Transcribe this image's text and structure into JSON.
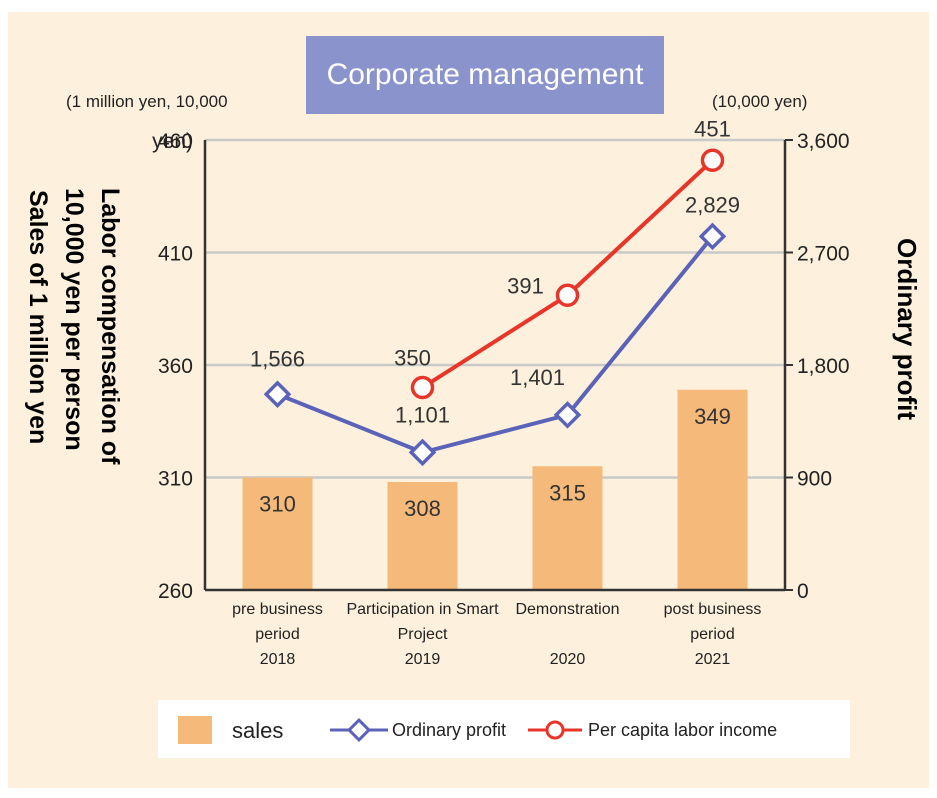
{
  "chart_data": {
    "type": "bar+line",
    "title": "Corporate management",
    "left_unit": "(1 million yen, 10,000",
    "left_unit_overlap": "yen)",
    "right_unit": "(10,000 yen)",
    "left_axis_label_lines": [
      "Labor compensation of",
      "10,000 yen per person",
      "Sales of 1 million yen"
    ],
    "right_axis_label": "Ordinary profit",
    "left_ylim": [
      260,
      460
    ],
    "right_ylim": [
      0,
      3600
    ],
    "left_ticks": [
      "260",
      "310",
      "360",
      "410",
      "460"
    ],
    "right_ticks": [
      "0",
      "900",
      "1,800",
      "2,700",
      "3,600"
    ],
    "categories": [
      [
        "pre business",
        "period",
        "2018"
      ],
      [
        "Participation in Smart",
        "Project",
        "2019"
      ],
      [
        "Demonstration",
        "",
        "2020"
      ],
      [
        "post business",
        "period",
        "2021"
      ]
    ],
    "series": [
      {
        "name": "sales",
        "kind": "bar",
        "axis": "left",
        "values": [
          310,
          308,
          315,
          349
        ],
        "labels": [
          "310",
          "308",
          "315",
          "349"
        ],
        "color": "#f5b97a"
      },
      {
        "name": "Ordinary profit",
        "kind": "line",
        "axis": "right",
        "values": [
          1566,
          1101,
          1401,
          2829
        ],
        "labels": [
          "1,566",
          "1,101",
          "1,401",
          "2,829"
        ],
        "color": "#5b63b8"
      },
      {
        "name": "Per capita labor income",
        "kind": "line",
        "axis": "left",
        "values": [
          null,
          350,
          391,
          451
        ],
        "labels": [
          "",
          "350",
          "391",
          "451"
        ],
        "color": "#e8352a"
      }
    ],
    "grid": true,
    "legend_position": "bottom"
  }
}
